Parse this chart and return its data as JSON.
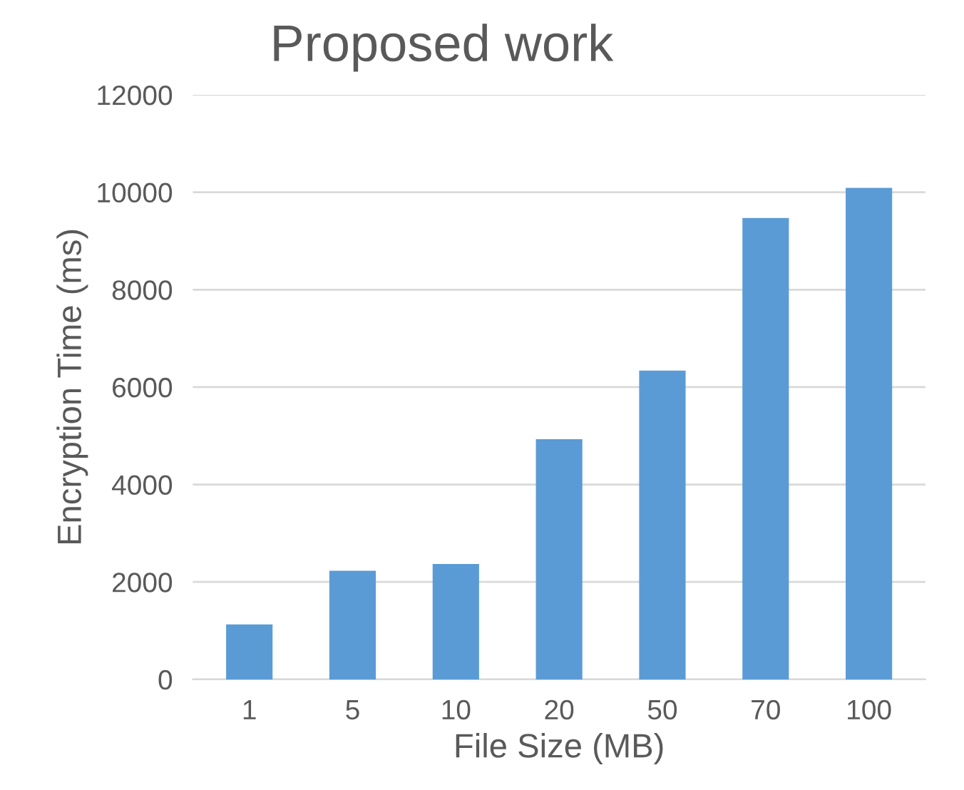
{
  "chart_data": {
    "type": "bar",
    "title": "Proposed work",
    "xlabel": "File Size (MB)",
    "ylabel": "Encryption Time (ms)",
    "categories": [
      "1",
      "5",
      "10",
      "20",
      "50",
      "70",
      "100"
    ],
    "values": [
      1130,
      2230,
      2370,
      4930,
      6340,
      9470,
      10090
    ],
    "color": "#5b9bd5",
    "ylim": [
      0,
      12000
    ],
    "yticks": [
      0,
      2000,
      4000,
      6000,
      8000,
      10000,
      12000
    ],
    "grid": "y"
  }
}
